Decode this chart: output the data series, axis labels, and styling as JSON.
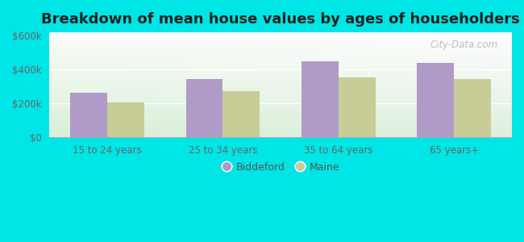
{
  "title": "Breakdown of mean house values by ages of householders",
  "categories": [
    "15 to 24 years",
    "25 to 34 years",
    "35 to 64 years",
    "65 years+"
  ],
  "biddeford": [
    265000,
    345000,
    450000,
    440000
  ],
  "maine": [
    205000,
    275000,
    355000,
    345000
  ],
  "biddeford_color": "#b09ac8",
  "maine_color": "#c8cc96",
  "bar_width": 0.32,
  "ylim": [
    0,
    620000
  ],
  "yticks": [
    0,
    200000,
    400000,
    600000
  ],
  "ytick_labels": [
    "$0",
    "$200k",
    "$400k",
    "$600k"
  ],
  "outer_background": "#00e5e5",
  "title_fontsize": 13,
  "legend_labels": [
    "Biddeford",
    "Maine"
  ],
  "watermark": "City-Data.com",
  "tick_color": "#666666",
  "grid_color": "#dddddd"
}
